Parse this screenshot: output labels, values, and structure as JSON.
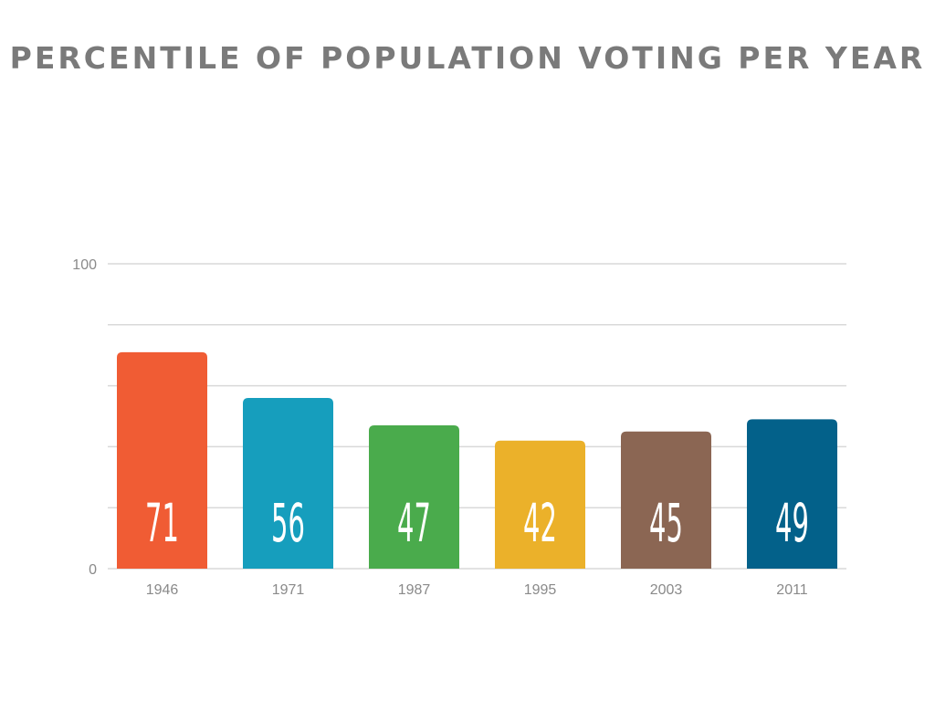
{
  "chart_data": {
    "type": "bar",
    "title": "PERCENTILE OF POPULATION VOTING PER YEAR",
    "categories": [
      "1946",
      "1971",
      "1987",
      "1995",
      "2003",
      "2011"
    ],
    "values": [
      71,
      56,
      47,
      42,
      45,
      49
    ],
    "colors": [
      "#F05C34",
      "#169EBD",
      "#4AAB4C",
      "#EBB12A",
      "#8B6653",
      "#03618A"
    ],
    "xlabel": "",
    "ylabel": "",
    "ylim": [
      0,
      100
    ],
    "yticks_labeled": [
      "0",
      "100"
    ],
    "grid_step": 20,
    "grid": true,
    "data_labels": [
      "71",
      "56",
      "47",
      "42",
      "45",
      "49"
    ]
  }
}
